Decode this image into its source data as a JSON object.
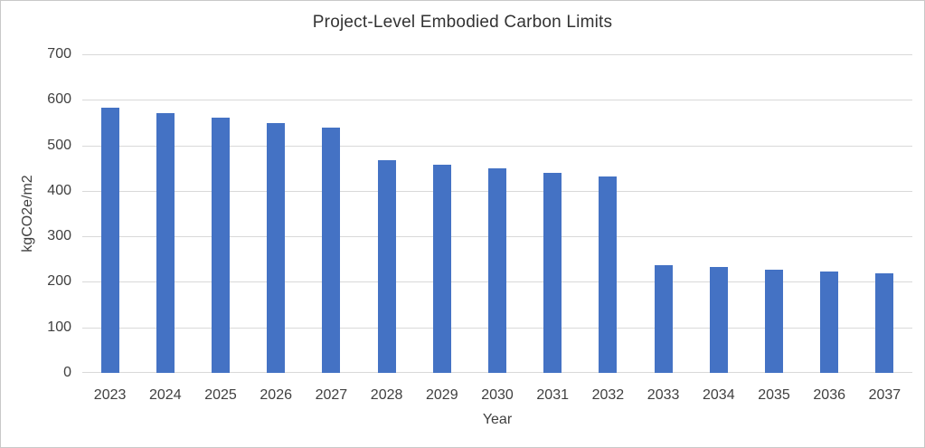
{
  "chart_data": {
    "type": "bar",
    "title": "Project-Level Embodied Carbon Limits",
    "xlabel": "Year",
    "ylabel": "kgCO2e/m2",
    "categories": [
      "2023",
      "2024",
      "2025",
      "2026",
      "2027",
      "2028",
      "2029",
      "2030",
      "2031",
      "2032",
      "2033",
      "2034",
      "2035",
      "2036",
      "2037"
    ],
    "values": [
      583,
      571,
      560,
      549,
      538,
      467,
      457,
      449,
      440,
      431,
      237,
      232,
      227,
      222,
      218
    ],
    "ylim": [
      0,
      700
    ],
    "yticks": [
      0,
      100,
      200,
      300,
      400,
      500,
      600,
      700
    ],
    "grid": true,
    "legend_position": "none",
    "colors": {
      "bar": "#4472C4",
      "gridline": "#D9D9D9",
      "axis_text": "#404040",
      "title_text": "#333333",
      "figure_border": "#C9C9C9",
      "background": "#FFFFFF"
    }
  }
}
